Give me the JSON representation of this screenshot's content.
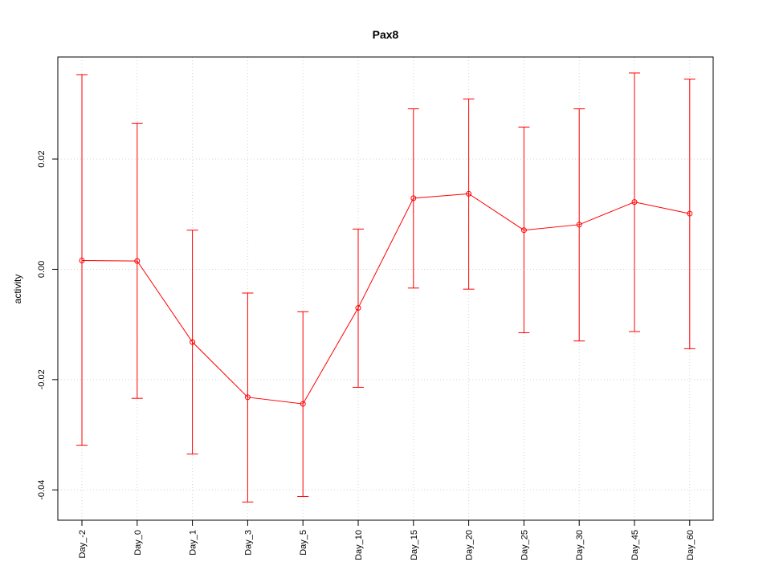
{
  "chart_data": {
    "type": "line",
    "title": "Pax8",
    "xlabel": "",
    "ylabel": "activity",
    "categories": [
      "Day_-2",
      "Day_0",
      "Day_1",
      "Day_3",
      "Day_5",
      "Day_10",
      "Day_15",
      "Day_20",
      "Day_25",
      "Day_30",
      "Day_45",
      "Day_60"
    ],
    "series": [
      {
        "values": [
          0.0016,
          0.0015,
          -0.0132,
          -0.0232,
          -0.0244,
          -0.007,
          0.0129,
          0.0137,
          0.0071,
          0.0081,
          0.0122,
          0.0101
        ],
        "error_upper": [
          0.0353,
          0.0265,
          0.0071,
          -0.0043,
          -0.0077,
          0.0073,
          0.0291,
          0.0309,
          0.0258,
          0.0291,
          0.0356,
          0.0345
        ],
        "error_lower": [
          -0.0319,
          -0.0234,
          -0.0335,
          -0.0422,
          -0.0412,
          -0.0214,
          -0.0034,
          -0.0036,
          -0.0115,
          -0.013,
          -0.0113,
          -0.0144
        ]
      }
    ],
    "yticks": [
      "-0.04",
      "-0.02",
      "0.00",
      "0.02"
    ],
    "ylim": [
      -0.0455,
      0.0385
    ],
    "grid": true,
    "color": "#ff0000"
  }
}
